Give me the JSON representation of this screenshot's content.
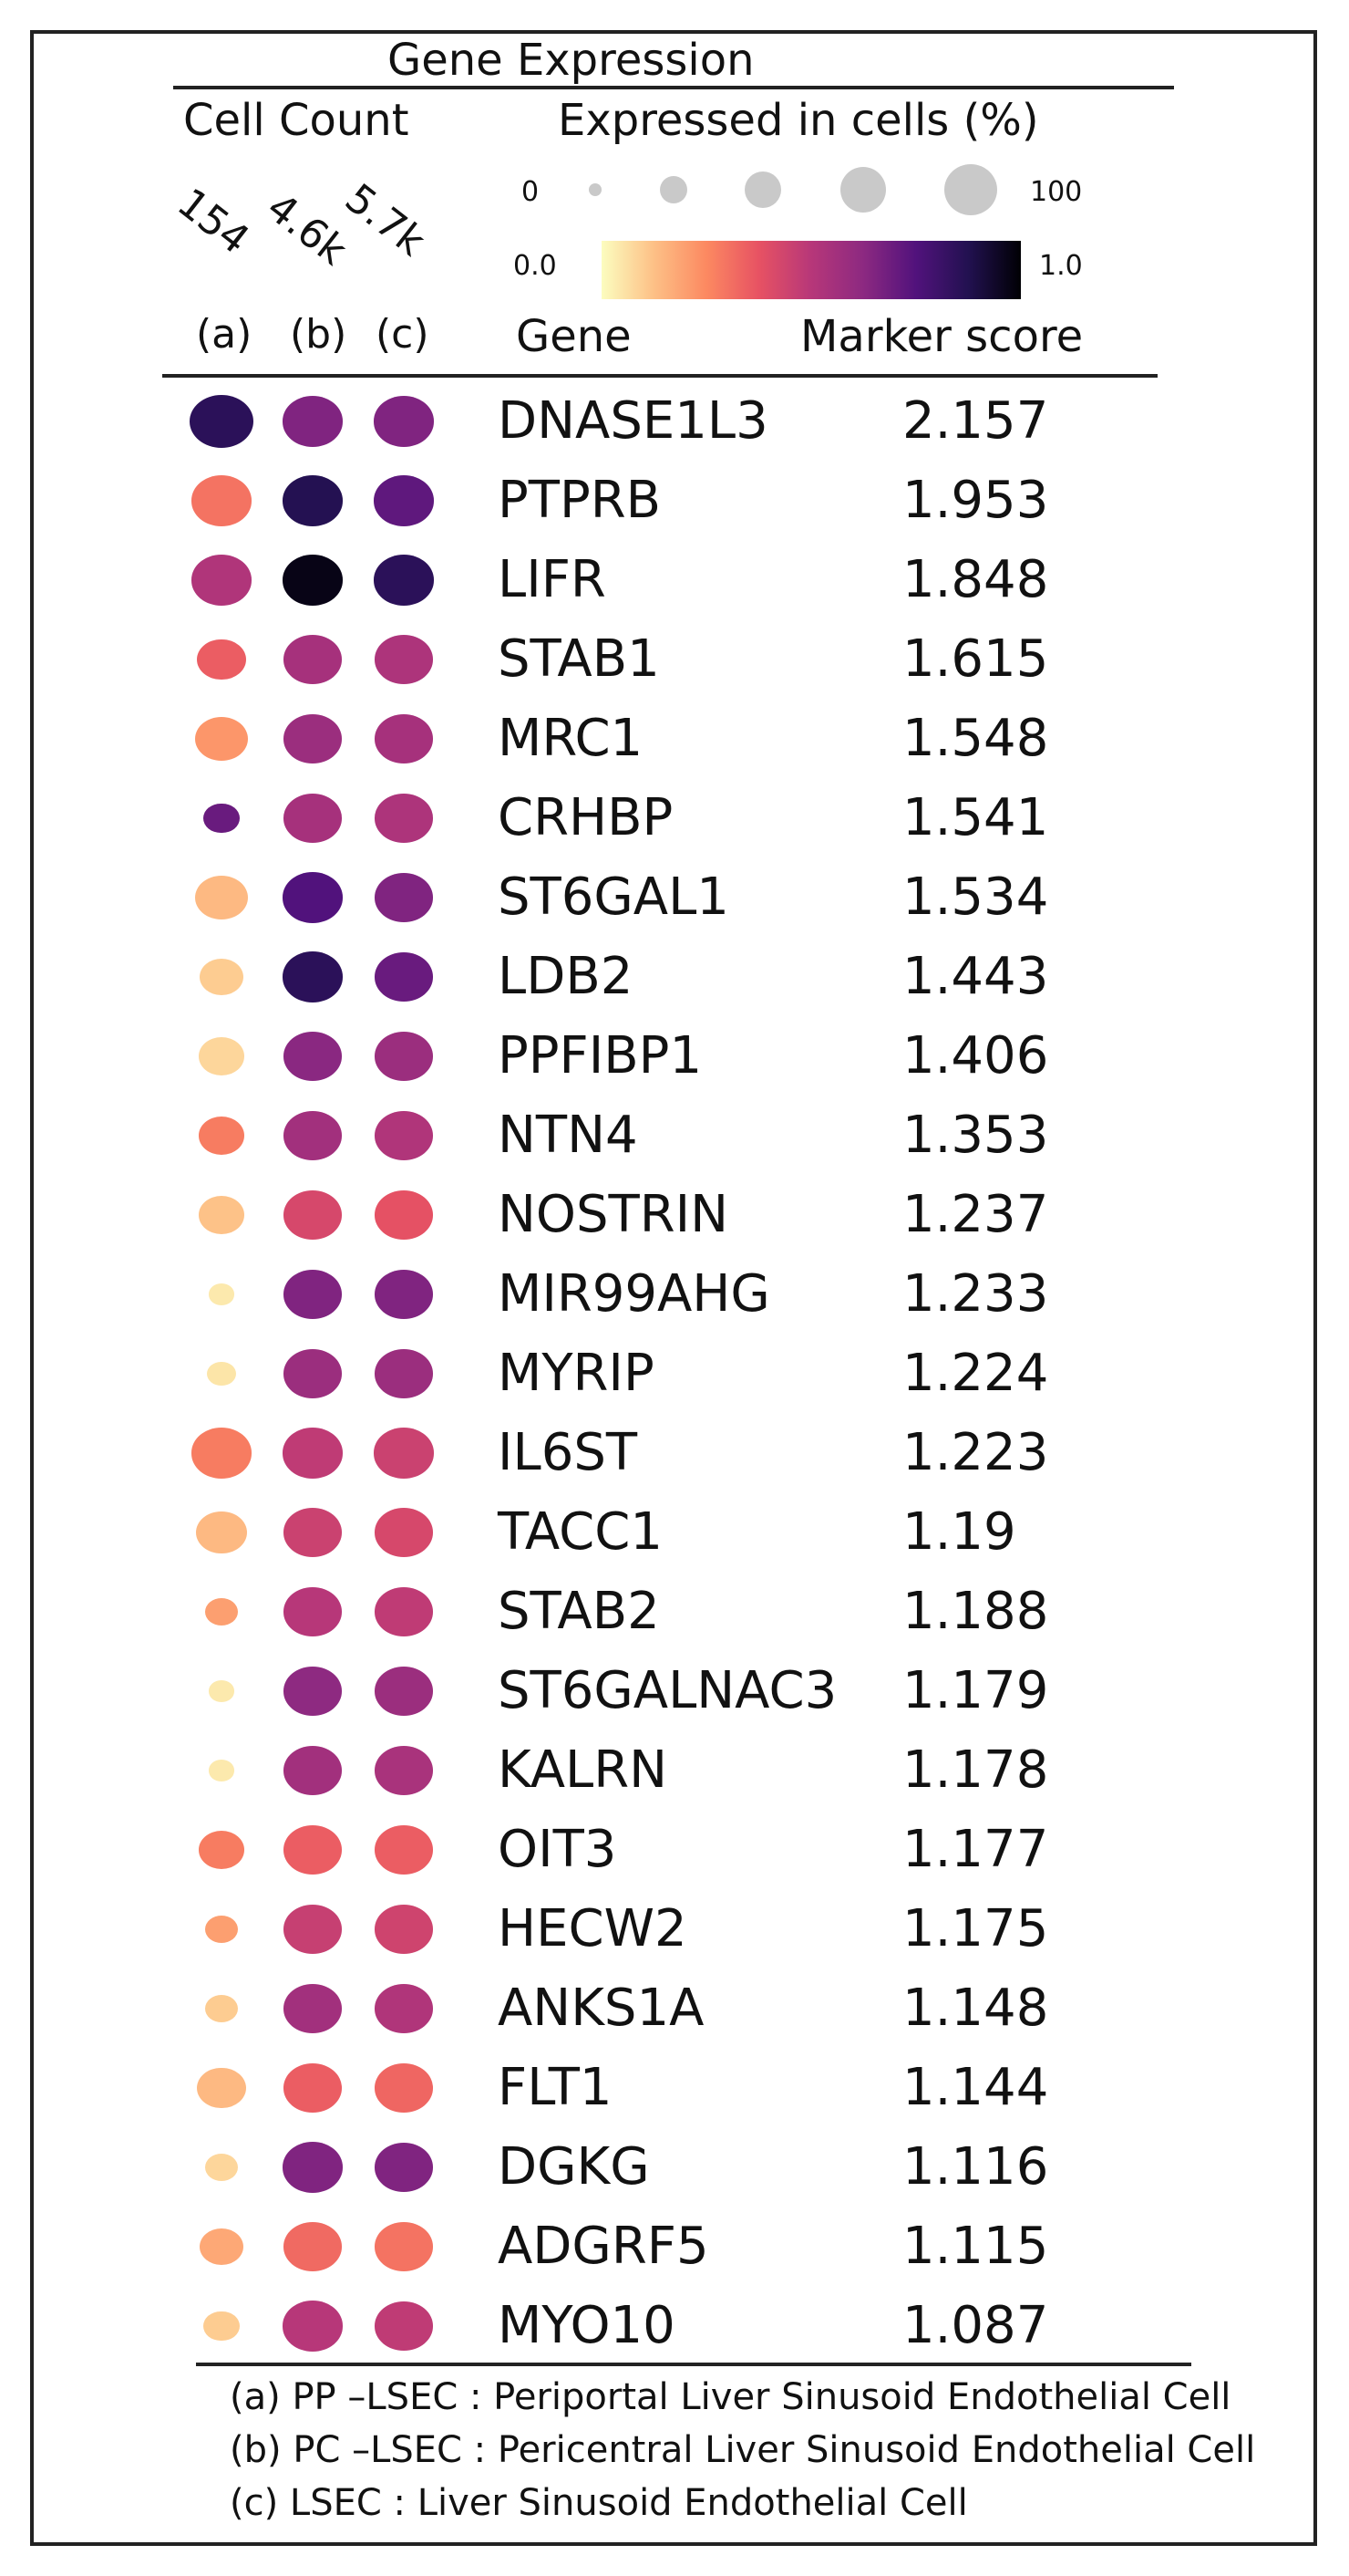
{
  "chart_data": {
    "type": "dot_plot",
    "title": "Gene Expression",
    "cell_count_label": "Cell Count",
    "size_legend_title": "Expressed in cells (%)",
    "size_legend_range": [
      "0",
      "100"
    ],
    "color_legend_range": [
      "0.0",
      "1.0"
    ],
    "colormap": "magma_r",
    "colormap_stops": [
      "#fcfdbf",
      "#fdc086",
      "#fc8961",
      "#e75263",
      "#b73779",
      "#8c2981",
      "#51127c",
      "#221150",
      "#000004"
    ],
    "column_labels": [
      "(a)",
      "(b)",
      "(c)"
    ],
    "cell_counts": [
      "154",
      "4.6k",
      "5.7k"
    ],
    "gene_header": "Gene",
    "score_header": "Marker score",
    "rows": [
      {
        "gene": "DNASE1L3",
        "score": "2.157",
        "pct": [
          95,
          85,
          85
        ],
        "expr": [
          0.85,
          0.65,
          0.65
        ]
      },
      {
        "gene": "PTPRB",
        "score": "1.953",
        "pct": [
          85,
          85,
          85
        ],
        "expr": [
          0.3,
          0.87,
          0.72
        ]
      },
      {
        "gene": "LIFR",
        "score": "1.848",
        "pct": [
          85,
          85,
          85
        ],
        "expr": [
          0.52,
          0.97,
          0.85
        ]
      },
      {
        "gene": "STAB1",
        "score": "1.615",
        "pct": [
          55,
          80,
          80
        ],
        "expr": [
          0.35,
          0.55,
          0.53
        ]
      },
      {
        "gene": "MRC1",
        "score": "1.548",
        "pct": [
          65,
          80,
          80
        ],
        "expr": [
          0.22,
          0.58,
          0.55
        ]
      },
      {
        "gene": "CRHBP",
        "score": "1.541",
        "pct": [
          30,
          80,
          80
        ],
        "expr": [
          0.7,
          0.55,
          0.53
        ]
      },
      {
        "gene": "ST6GAL1",
        "score": "1.534",
        "pct": [
          65,
          85,
          80
        ],
        "expr": [
          0.14,
          0.75,
          0.65
        ]
      },
      {
        "gene": "LDB2",
        "score": "1.443",
        "pct": [
          45,
          85,
          80
        ],
        "expr": [
          0.1,
          0.85,
          0.7
        ]
      },
      {
        "gene": "PPFIBP1",
        "score": "1.406",
        "pct": [
          50,
          80,
          80
        ],
        "expr": [
          0.08,
          0.63,
          0.58
        ]
      },
      {
        "gene": "NTN4",
        "score": "1.353",
        "pct": [
          50,
          80,
          80
        ],
        "expr": [
          0.28,
          0.56,
          0.52
        ]
      },
      {
        "gene": "NOSTRIN",
        "score": "1.237",
        "pct": [
          50,
          80,
          80
        ],
        "expr": [
          0.12,
          0.42,
          0.38
        ]
      },
      {
        "gene": "MIR99AHG",
        "score": "1.233",
        "pct": [
          15,
          80,
          80
        ],
        "expr": [
          0.04,
          0.65,
          0.65
        ]
      },
      {
        "gene": "MYRIP",
        "score": "1.224",
        "pct": [
          20,
          80,
          80
        ],
        "expr": [
          0.05,
          0.58,
          0.58
        ]
      },
      {
        "gene": "IL6ST",
        "score": "1.223",
        "pct": [
          85,
          85,
          85
        ],
        "expr": [
          0.28,
          0.48,
          0.45
        ]
      },
      {
        "gene": "TACC1",
        "score": "1.19",
        "pct": [
          60,
          80,
          80
        ],
        "expr": [
          0.14,
          0.45,
          0.42
        ]
      },
      {
        "gene": "STAB2",
        "score": "1.188",
        "pct": [
          25,
          80,
          80
        ],
        "expr": [
          0.2,
          0.5,
          0.48
        ]
      },
      {
        "gene": "ST6GALNAC3",
        "score": "1.179",
        "pct": [
          15,
          80,
          80
        ],
        "expr": [
          0.04,
          0.62,
          0.58
        ]
      },
      {
        "gene": "KALRN",
        "score": "1.178",
        "pct": [
          15,
          80,
          80
        ],
        "expr": [
          0.04,
          0.56,
          0.54
        ]
      },
      {
        "gene": "OIT3",
        "score": "1.177",
        "pct": [
          50,
          80,
          80
        ],
        "expr": [
          0.28,
          0.35,
          0.35
        ]
      },
      {
        "gene": "HECW2",
        "score": "1.175",
        "pct": [
          25,
          80,
          80
        ],
        "expr": [
          0.2,
          0.46,
          0.44
        ]
      },
      {
        "gene": "ANKS1A",
        "score": "1.148",
        "pct": [
          25,
          80,
          80
        ],
        "expr": [
          0.1,
          0.56,
          0.52
        ]
      },
      {
        "gene": "FLT1",
        "score": "1.144",
        "pct": [
          55,
          80,
          80
        ],
        "expr": [
          0.14,
          0.35,
          0.33
        ]
      },
      {
        "gene": "DGKG",
        "score": "1.116",
        "pct": [
          25,
          85,
          80
        ],
        "expr": [
          0.08,
          0.65,
          0.65
        ]
      },
      {
        "gene": "ADGRF5",
        "score": "1.115",
        "pct": [
          45,
          80,
          80
        ],
        "expr": [
          0.18,
          0.32,
          0.3
        ]
      },
      {
        "gene": "MYO10",
        "score": "1.087",
        "pct": [
          30,
          85,
          80
        ],
        "expr": [
          0.1,
          0.5,
          0.48
        ]
      }
    ]
  },
  "footnotes": [
    "(a) PP –LSEC : Periportal Liver Sinusoid Endothelial Cell",
    "(b) PC –LSEC : Pericentral Liver Sinusoid Endothelial Cell",
    "(c) LSEC : Liver Sinusoid Endothelial Cell"
  ]
}
